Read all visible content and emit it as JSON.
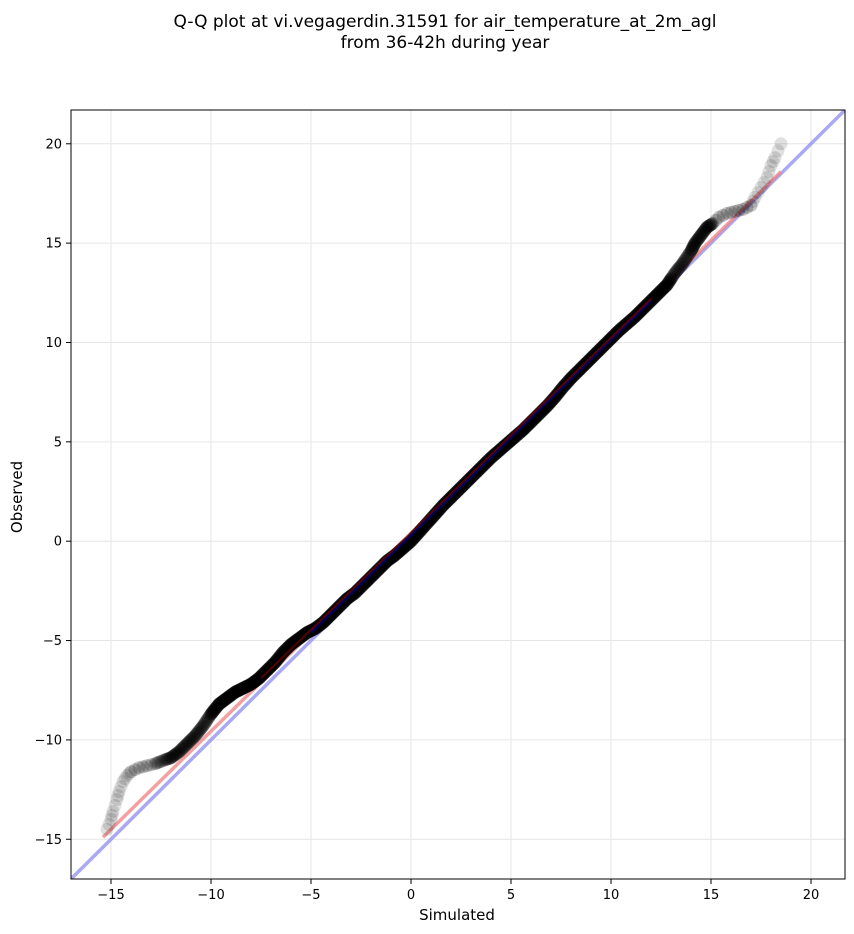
{
  "chart_data": {
    "type": "scatter",
    "title": "Q-Q plot at vi.vegagerdin.31591 for air_temperature_at_2m_agl",
    "subtitle": "from 36-42h during year",
    "xlabel": "Simulated",
    "ylabel": "Observed",
    "xlim": [
      -17,
      21.7
    ],
    "ylim": [
      -17,
      21.7
    ],
    "xticks": [
      -15,
      -10,
      -5,
      0,
      5,
      10,
      15,
      20
    ],
    "yticks": [
      -15,
      -10,
      -5,
      0,
      5,
      10,
      15,
      20
    ],
    "xtick_labels": [
      "−15",
      "−10",
      "−5",
      "0",
      "5",
      "10",
      "15",
      "20"
    ],
    "ytick_labels": [
      "−15",
      "−10",
      "−5",
      "0",
      "5",
      "10",
      "15",
      "20"
    ],
    "grid": true,
    "quantiles": [
      [
        -15.2,
        -14.5
      ],
      [
        -15.0,
        -14.0
      ],
      [
        -14.9,
        -13.6
      ],
      [
        -14.7,
        -13.0
      ],
      [
        -14.6,
        -12.6
      ],
      [
        -14.4,
        -12.1
      ],
      [
        -14.2,
        -11.8
      ],
      [
        -14.0,
        -11.6
      ],
      [
        -13.6,
        -11.4
      ],
      [
        -13.2,
        -11.3
      ],
      [
        -12.8,
        -11.2
      ],
      [
        -12.3,
        -11.0
      ],
      [
        -12.0,
        -10.9
      ],
      [
        -11.6,
        -10.6
      ],
      [
        -11.2,
        -10.2
      ],
      [
        -10.8,
        -9.8
      ],
      [
        -10.4,
        -9.3
      ],
      [
        -10.0,
        -8.7
      ],
      [
        -9.6,
        -8.2
      ],
      [
        -9.2,
        -7.9
      ],
      [
        -8.8,
        -7.6
      ],
      [
        -8.4,
        -7.4
      ],
      [
        -8.0,
        -7.2
      ],
      [
        -7.6,
        -6.9
      ],
      [
        -7.2,
        -6.5
      ],
      [
        -6.8,
        -6.1
      ],
      [
        -6.4,
        -5.6
      ],
      [
        -6.0,
        -5.2
      ],
      [
        -5.6,
        -4.9
      ],
      [
        -5.2,
        -4.6
      ],
      [
        -4.8,
        -4.4
      ],
      [
        -4.4,
        -4.1
      ],
      [
        -4.0,
        -3.7
      ],
      [
        -3.6,
        -3.3
      ],
      [
        -3.2,
        -2.9
      ],
      [
        -2.8,
        -2.6
      ],
      [
        -2.4,
        -2.2
      ],
      [
        -2.0,
        -1.8
      ],
      [
        -1.6,
        -1.4
      ],
      [
        -1.2,
        -1.0
      ],
      [
        -0.8,
        -0.7
      ],
      [
        -0.4,
        -0.35
      ],
      [
        0.0,
        0.0
      ],
      [
        0.4,
        0.45
      ],
      [
        0.8,
        0.9
      ],
      [
        1.2,
        1.35
      ],
      [
        1.6,
        1.8
      ],
      [
        2.0,
        2.2
      ],
      [
        2.4,
        2.6
      ],
      [
        2.8,
        3.0
      ],
      [
        3.2,
        3.4
      ],
      [
        3.6,
        3.8
      ],
      [
        4.0,
        4.2
      ],
      [
        4.4,
        4.55
      ],
      [
        4.8,
        4.9
      ],
      [
        5.2,
        5.25
      ],
      [
        5.6,
        5.6
      ],
      [
        6.0,
        6.0
      ],
      [
        6.4,
        6.4
      ],
      [
        6.8,
        6.8
      ],
      [
        7.2,
        7.25
      ],
      [
        7.6,
        7.75
      ],
      [
        8.0,
        8.2
      ],
      [
        8.4,
        8.6
      ],
      [
        8.8,
        9.0
      ],
      [
        9.2,
        9.4
      ],
      [
        9.6,
        9.8
      ],
      [
        10.0,
        10.2
      ],
      [
        10.4,
        10.6
      ],
      [
        10.8,
        10.95
      ],
      [
        11.2,
        11.3
      ],
      [
        11.6,
        11.7
      ],
      [
        12.0,
        12.1
      ],
      [
        12.4,
        12.5
      ],
      [
        12.8,
        12.9
      ],
      [
        13.2,
        13.5
      ],
      [
        13.6,
        14.0
      ],
      [
        14.0,
        14.6
      ],
      [
        14.2,
        15.0
      ],
      [
        14.5,
        15.4
      ],
      [
        14.8,
        15.8
      ],
      [
        15.1,
        16.0
      ],
      [
        15.4,
        16.3
      ],
      [
        15.8,
        16.5
      ],
      [
        16.2,
        16.6
      ],
      [
        16.6,
        16.7
      ],
      [
        17.0,
        16.9
      ],
      [
        17.2,
        17.3
      ],
      [
        17.5,
        17.8
      ],
      [
        17.8,
        18.3
      ],
      [
        18.0,
        18.9
      ],
      [
        18.2,
        19.3
      ],
      [
        18.5,
        20.0
      ]
    ],
    "fit_line": {
      "color": "#f08080",
      "from": [
        -15.4,
        -14.9
      ],
      "to": [
        18.5,
        18.6
      ]
    },
    "identity_line": {
      "color": "#8c8cf0",
      "from": [
        -17,
        -17
      ],
      "to": [
        21.7,
        21.7
      ]
    },
    "point_color": "#000000",
    "bold_fit_color": "#8b0000",
    "bold_identity_color": "#00008b"
  }
}
